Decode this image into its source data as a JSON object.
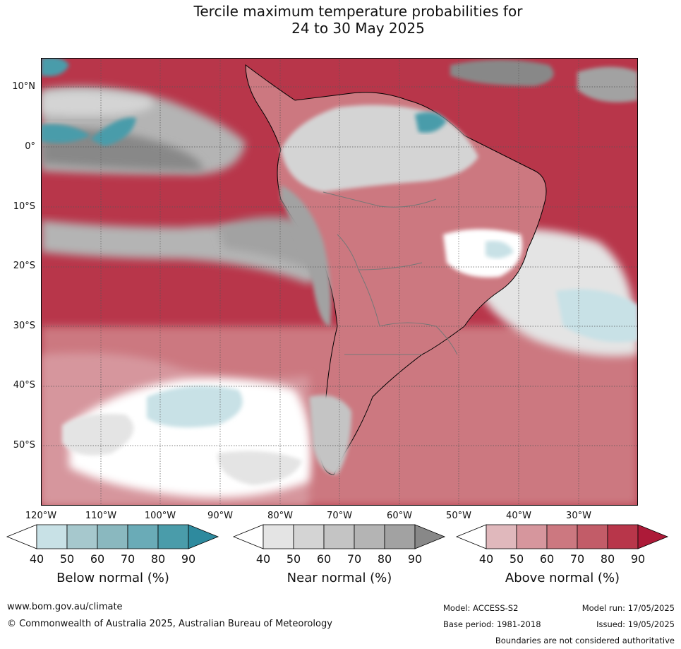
{
  "title": {
    "line1": "Tercile maximum temperature probabilities for",
    "line2": "24 to 30 May 2025"
  },
  "map": {
    "lat_labels": [
      "10°N",
      "0°",
      "10°S",
      "20°S",
      "30°S",
      "40°S",
      "50°S"
    ],
    "lon_labels": [
      "120°W",
      "110°W",
      "100°W",
      "90°W",
      "80°W",
      "70°W",
      "60°W",
      "50°W",
      "40°W",
      "30°W"
    ]
  },
  "legends": [
    {
      "title": "Below normal (%)",
      "ticks": [
        "40",
        "50",
        "60",
        "70",
        "80",
        "90"
      ],
      "colors": [
        "#ffffff",
        "#c8e1e6",
        "#a6c8cd",
        "#8ab8bf",
        "#6aabb7",
        "#4a9caa",
        "#2e8a9e"
      ]
    },
    {
      "title": "Near normal (%)",
      "ticks": [
        "40",
        "50",
        "60",
        "70",
        "80",
        "90"
      ],
      "colors": [
        "#ffffff",
        "#e4e4e4",
        "#d4d4d4",
        "#c4c4c4",
        "#b4b4b4",
        "#a2a2a2",
        "#888888"
      ]
    },
    {
      "title": "Above normal (%)",
      "ticks": [
        "40",
        "50",
        "60",
        "70",
        "80",
        "90"
      ],
      "colors": [
        "#ffffff",
        "#e0b8bc",
        "#d6969d",
        "#cc7880",
        "#c25c68",
        "#b8364a",
        "#ad1a38"
      ]
    }
  ],
  "footer": {
    "website": "www.bom.gov.au/climate",
    "copyright": "© Commonwealth of Australia 2025, Australian Bureau of Meteorology",
    "model": "Model: ACCESS-S2",
    "model_run": "Model run: 17/05/2025",
    "base_period": "Base period: 1981-2018",
    "issued": "Issued: 19/05/2025",
    "disclaimer": "Boundaries are not considered authoritative"
  }
}
